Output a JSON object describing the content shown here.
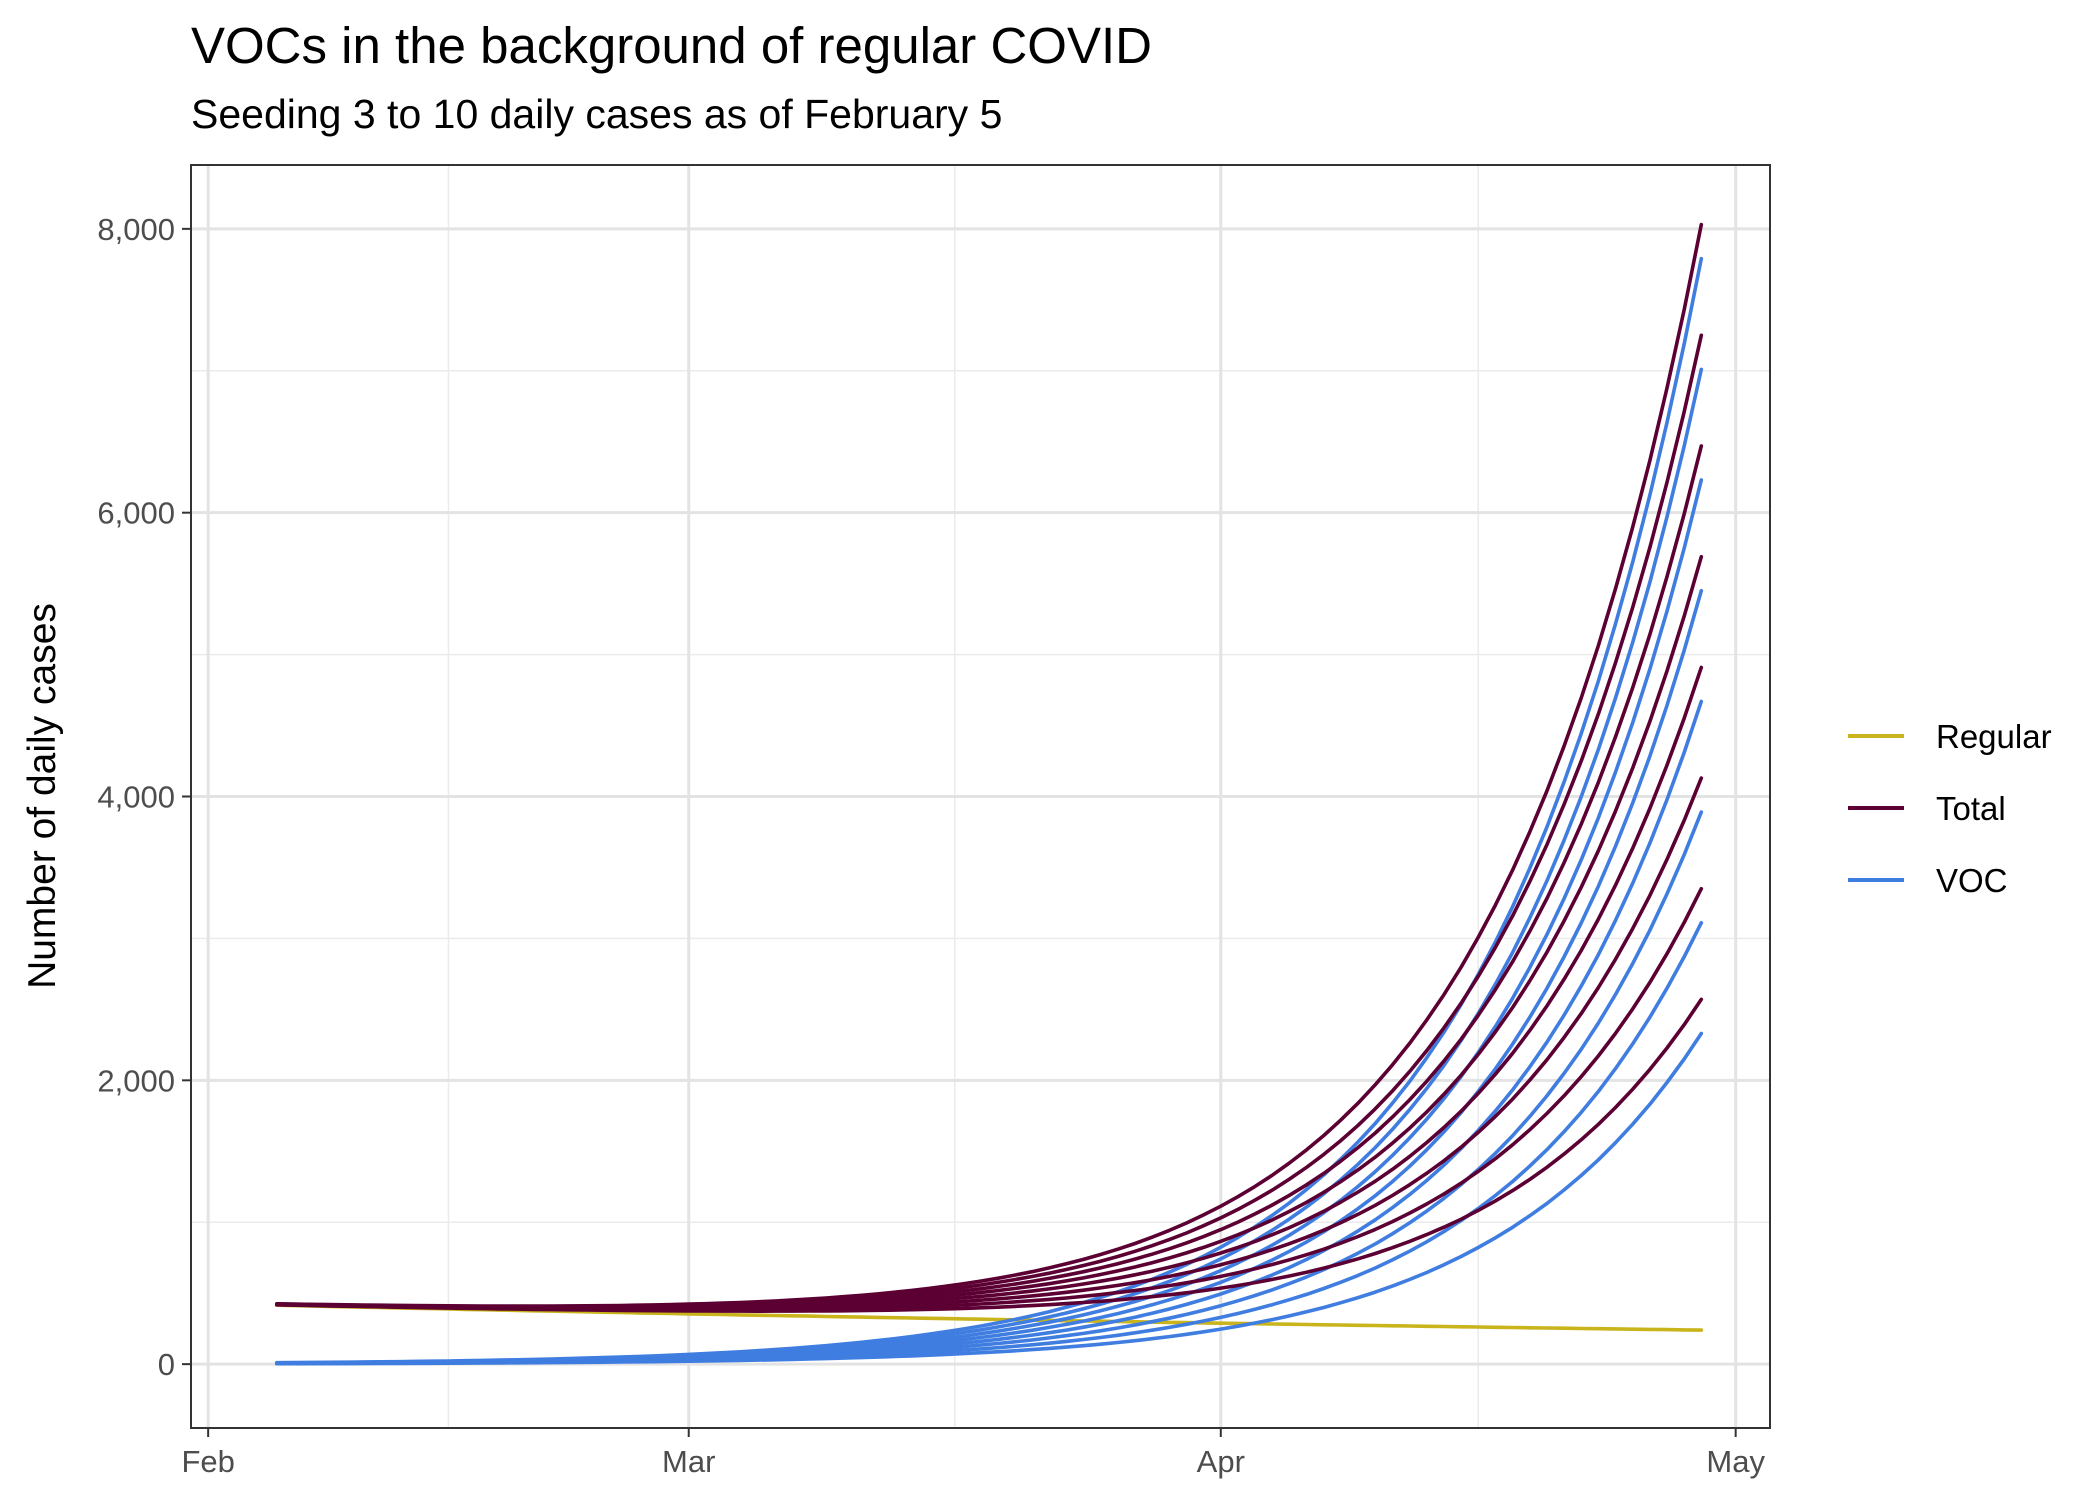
{
  "chart_data": {
    "type": "line",
    "title": "VOCs in the background of regular COVID",
    "subtitle": "Seeding 3 to 10 daily cases as of February 5",
    "xlabel": "",
    "ylabel": "Number of daily cases",
    "x_start": "2021-02-05",
    "x_end": "2021-04-29",
    "xlim": [
      "2021-01-31",
      "2021-05-03"
    ],
    "ylim": [
      -450,
      8450
    ],
    "x_ticks": [
      {
        "label": "Feb",
        "date": "2021-02-01"
      },
      {
        "label": "Mar",
        "date": "2021-03-01"
      },
      {
        "label": "Apr",
        "date": "2021-04-01"
      },
      {
        "label": "May",
        "date": "2021-05-01"
      }
    ],
    "y_ticks": [
      {
        "label": "0",
        "value": 0
      },
      {
        "label": "2,000",
        "value": 2000
      },
      {
        "label": "4,000",
        "value": 4000
      },
      {
        "label": "6,000",
        "value": 6000
      },
      {
        "label": "8,000",
        "value": 8000
      }
    ],
    "grid": true,
    "legend_position": "right",
    "legend": [
      {
        "name": "Regular",
        "color": "#C9B41C"
      },
      {
        "name": "Total",
        "color": "#5C0033"
      },
      {
        "name": "VOC",
        "color": "#3F7DE0"
      }
    ],
    "series": [
      {
        "name": "Regular",
        "color": "#C9B41C",
        "seed": null,
        "start": 415,
        "end": 240
      },
      {
        "name": "VOC",
        "color": "#3F7DE0",
        "seed": 3,
        "end": 2330
      },
      {
        "name": "VOC",
        "color": "#3F7DE0",
        "seed": 4,
        "end": 3110
      },
      {
        "name": "VOC",
        "color": "#3F7DE0",
        "seed": 5,
        "end": 3890
      },
      {
        "name": "VOC",
        "color": "#3F7DE0",
        "seed": 6,
        "end": 4670
      },
      {
        "name": "VOC",
        "color": "#3F7DE0",
        "seed": 7,
        "end": 5450
      },
      {
        "name": "VOC",
        "color": "#3F7DE0",
        "seed": 8,
        "end": 6230
      },
      {
        "name": "VOC",
        "color": "#3F7DE0",
        "seed": 9,
        "end": 7010
      },
      {
        "name": "VOC",
        "color": "#3F7DE0",
        "seed": 10,
        "end": 7790
      },
      {
        "name": "Total",
        "color": "#5C0033",
        "seed": 3,
        "end": 2570
      },
      {
        "name": "Total",
        "color": "#5C0033",
        "seed": 4,
        "end": 3350
      },
      {
        "name": "Total",
        "color": "#5C0033",
        "seed": 5,
        "end": 4130
      },
      {
        "name": "Total",
        "color": "#5C0033",
        "seed": 6,
        "end": 4910
      },
      {
        "name": "Total",
        "color": "#5C0033",
        "seed": 7,
        "end": 5690
      },
      {
        "name": "Total",
        "color": "#5C0033",
        "seed": 8,
        "end": 6470
      },
      {
        "name": "Total",
        "color": "#5C0033",
        "seed": 9,
        "end": 7250
      },
      {
        "name": "Total",
        "color": "#5C0033",
        "seed": 10,
        "end": 8030
      }
    ]
  }
}
